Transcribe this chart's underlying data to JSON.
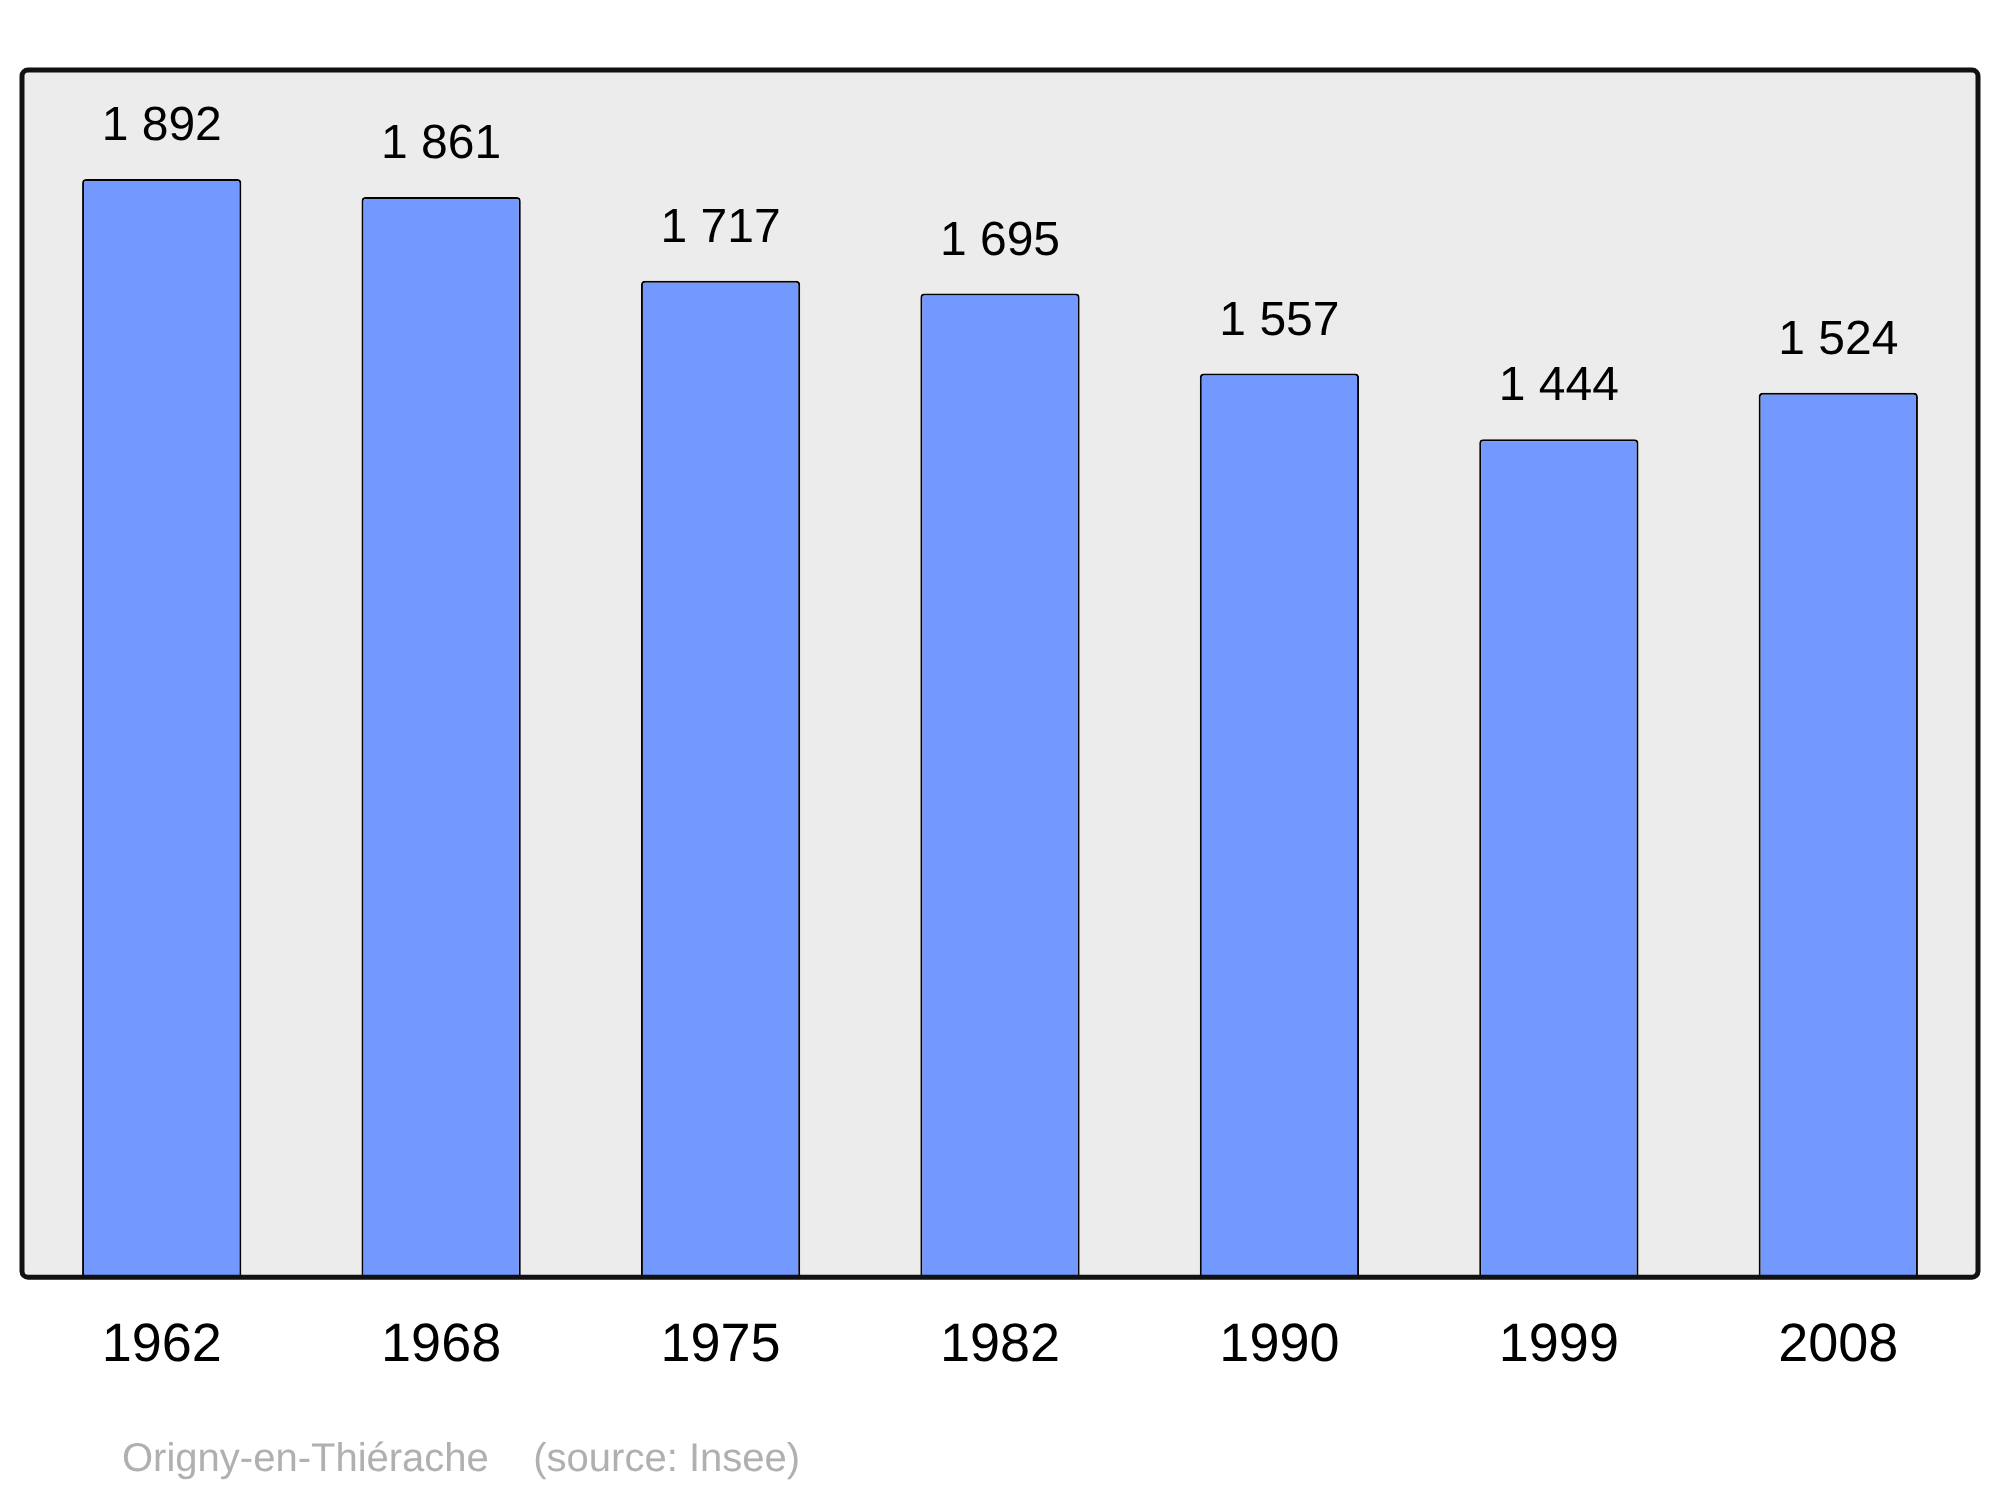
{
  "chart_data": {
    "type": "bar",
    "categories": [
      "1962",
      "1968",
      "1975",
      "1982",
      "1990",
      "1999",
      "2008"
    ],
    "values": [
      1892,
      1861,
      1717,
      1695,
      1557,
      1444,
      1524
    ],
    "value_labels": [
      "1 892",
      "1 861",
      "1 717",
      "1 695",
      "1 557",
      "1 444",
      "1 524"
    ],
    "color": "#7399ff",
    "ylim": [
      0,
      2080
    ],
    "tick_labels": "x",
    "grid": false,
    "legend": false,
    "annotations": [
      "Origny-en-Thiérache    (source: Insee)"
    ]
  }
}
